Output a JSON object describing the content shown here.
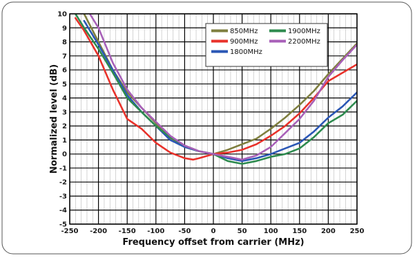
{
  "chart_data": {
    "type": "line",
    "title": "",
    "xlabel": "Frequency offset from carrier (MHz)",
    "ylabel": "Normalized level (dB)",
    "xlim": [
      -250,
      250
    ],
    "ylim": [
      -5,
      10
    ],
    "xticks": [
      -250,
      -200,
      -150,
      -100,
      -50,
      0,
      50,
      100,
      150,
      200,
      250
    ],
    "yticks": [
      -5,
      -4,
      -3,
      -2,
      -1,
      0,
      1,
      2,
      3,
      4,
      5,
      6,
      7,
      8,
      9,
      10
    ],
    "grid": true,
    "legend_position": "top-right",
    "series": [
      {
        "name": "850MHz",
        "color": "#7f7f3f",
        "x": [
          -225,
          -200,
          -175,
          -150,
          -125,
          -100,
          -75,
          -50,
          -25,
          0,
          25,
          50,
          75,
          100,
          125,
          150,
          175,
          200,
          225,
          250
        ],
        "y": [
          10.0,
          8.0,
          6.0,
          4.4,
          3.3,
          2.2,
          1.1,
          0.5,
          0.2,
          0.0,
          0.3,
          0.7,
          1.1,
          1.8,
          2.6,
          3.5,
          4.5,
          5.7,
          6.8,
          7.9
        ]
      },
      {
        "name": "900MHz",
        "color": "#e8322b",
        "x": [
          -240,
          -225,
          -200,
          -175,
          -150,
          -125,
          -100,
          -75,
          -50,
          -35,
          -25,
          0,
          25,
          50,
          75,
          100,
          125,
          150,
          175,
          200,
          225,
          250
        ],
        "y": [
          9.7,
          8.8,
          7.0,
          4.6,
          2.5,
          1.8,
          0.8,
          0.1,
          -0.3,
          -0.4,
          -0.3,
          0.0,
          0.1,
          0.3,
          0.7,
          1.3,
          2.0,
          2.9,
          4.0,
          5.2,
          5.8,
          6.4
        ]
      },
      {
        "name": "1800MHz",
        "color": "#2b57b5",
        "x": [
          -225,
          -200,
          -175,
          -150,
          -125,
          -100,
          -75,
          -50,
          -25,
          0,
          25,
          50,
          75,
          100,
          125,
          150,
          175,
          200,
          225,
          250
        ],
        "y": [
          9.5,
          7.8,
          6.0,
          4.2,
          3.0,
          2.0,
          1.0,
          0.5,
          0.2,
          0.0,
          -0.3,
          -0.5,
          -0.3,
          0.0,
          0.4,
          0.8,
          1.6,
          2.6,
          3.4,
          4.4
        ]
      },
      {
        "name": "1900MHz",
        "color": "#2e8b4f",
        "x": [
          -240,
          -225,
          -200,
          -175,
          -150,
          -125,
          -100,
          -75,
          -50,
          -25,
          0,
          25,
          50,
          75,
          100,
          125,
          150,
          175,
          200,
          225,
          250
        ],
        "y": [
          10.0,
          9.0,
          7.5,
          5.8,
          4.0,
          3.0,
          2.0,
          1.2,
          0.6,
          0.2,
          0.0,
          -0.5,
          -0.7,
          -0.5,
          -0.2,
          0.0,
          0.4,
          1.2,
          2.2,
          2.8,
          3.8
        ]
      },
      {
        "name": "2200MHz",
        "color": "#a860b8",
        "x": [
          -215,
          -200,
          -175,
          -150,
          -125,
          -100,
          -75,
          -50,
          -25,
          0,
          25,
          50,
          75,
          100,
          125,
          150,
          175,
          200,
          225,
          250
        ],
        "y": [
          10.0,
          9.0,
          6.5,
          4.6,
          3.3,
          2.3,
          1.3,
          0.6,
          0.2,
          0.0,
          -0.2,
          -0.4,
          -0.1,
          0.5,
          1.5,
          2.5,
          3.8,
          5.5,
          6.7,
          7.8
        ]
      }
    ]
  }
}
